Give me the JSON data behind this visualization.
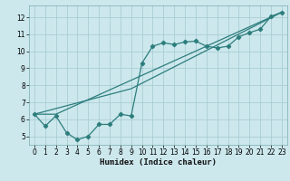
{
  "xlabel": "Humidex (Indice chaleur)",
  "bg_color": "#cce8ed",
  "grid_color": "#aacdd4",
  "line_color": "#2d7d7d",
  "xlim": [
    -0.5,
    23.5
  ],
  "ylim": [
    4.5,
    12.7
  ],
  "xticks": [
    0,
    1,
    2,
    3,
    4,
    5,
    6,
    7,
    8,
    9,
    10,
    11,
    12,
    13,
    14,
    15,
    16,
    17,
    18,
    19,
    20,
    21,
    22,
    23
  ],
  "yticks": [
    5,
    6,
    7,
    8,
    9,
    10,
    11,
    12
  ],
  "curve1_x": [
    0,
    1,
    2,
    3,
    4,
    5,
    6,
    7,
    8,
    9,
    10,
    11,
    12,
    13,
    14,
    15,
    16,
    17,
    18,
    19,
    20,
    21,
    22,
    23
  ],
  "curve1_y": [
    6.3,
    5.6,
    6.2,
    5.2,
    4.8,
    5.0,
    5.7,
    5.7,
    6.3,
    6.2,
    9.3,
    10.3,
    10.5,
    10.4,
    10.55,
    10.6,
    10.3,
    10.2,
    10.3,
    10.85,
    11.1,
    11.3,
    12.05,
    12.3
  ],
  "curve2_x": [
    0,
    2,
    23
  ],
  "curve2_y": [
    6.3,
    6.3,
    12.3
  ],
  "curve3_x": [
    0,
    9,
    23
  ],
  "curve3_y": [
    6.3,
    7.8,
    12.3
  ],
  "xlabel_fontsize": 6.5,
  "tick_fontsize": 5.5,
  "marker_size": 2.2,
  "line_width": 0.9
}
